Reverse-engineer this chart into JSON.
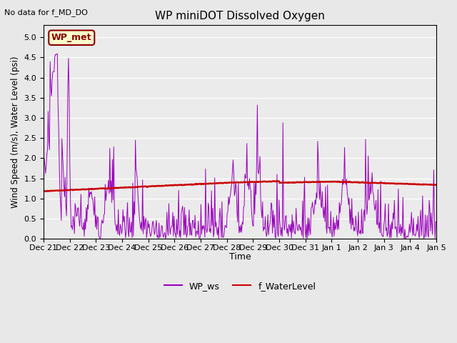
{
  "title": "WP miniDOT Dissolved Oxygen",
  "xlabel": "Time",
  "ylabel": "Wind Speed (m/s), Water Level (psi)",
  "top_left_note": "No data for f_MD_DO",
  "legend_box_label": "WP_met",
  "legend_box_facecolor": "#ffffcc",
  "legend_box_edgecolor": "#8b0000",
  "ws_color": "#9900bb",
  "wl_color": "#cc0000",
  "ws_label": "WP_ws",
  "wl_label": "f_WaterLevel",
  "ylim": [
    0.0,
    5.3
  ],
  "yticks": [
    0.0,
    0.5,
    1.0,
    1.5,
    2.0,
    2.5,
    3.0,
    3.5,
    4.0,
    4.5,
    5.0
  ],
  "bg_color": "#e8e8e8",
  "plot_bg_color": "#ebebeb",
  "n_points": 600,
  "start_day": 0,
  "end_day": 15.0,
  "xtick_positions": [
    0,
    1,
    2,
    3,
    4,
    5,
    6,
    7,
    8,
    9,
    10,
    11,
    12,
    13,
    14,
    15
  ],
  "xtick_labels": [
    "Dec 21",
    "Dec 22",
    "Dec 23",
    "Dec 24",
    "Dec 25",
    "Dec 26",
    "Dec 27",
    "Dec 28",
    "Dec 29",
    "Dec 30",
    "Dec 31",
    "Jan 1",
    "Jan 2",
    "Jan 3",
    "Jan 4",
    "Jan 5"
  ]
}
